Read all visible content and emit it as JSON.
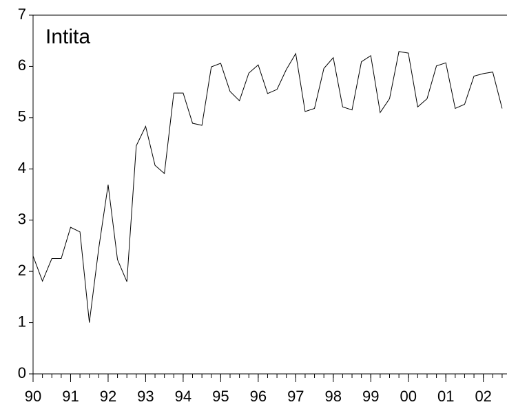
{
  "chart_data": {
    "type": "line",
    "annotation": "Intita",
    "x": [
      1990,
      1990.25,
      1990.5,
      1990.75,
      1991,
      1991.25,
      1991.5,
      1991.75,
      1992,
      1992.25,
      1992.5,
      1992.75,
      1993,
      1993.25,
      1993.5,
      1993.75,
      1994,
      1994.25,
      1994.5,
      1994.75,
      1995,
      1995.25,
      1995.5,
      1995.75,
      1996,
      1996.25,
      1996.5,
      1996.75,
      1997,
      1997.25,
      1997.5,
      1997.75,
      1998,
      1998.25,
      1998.5,
      1998.75,
      1999,
      1999.25,
      1999.5,
      1999.75,
      2000,
      2000.25,
      2000.5,
      2000.75,
      2001,
      2001.25,
      2001.5,
      2001.75,
      2002,
      2002.25,
      2002.5
    ],
    "series": [
      {
        "color": "#000000",
        "values": [
          2.3,
          1.81,
          2.25,
          2.25,
          2.86,
          2.77,
          1.0,
          2.45,
          3.69,
          2.23,
          1.8,
          4.45,
          4.83,
          4.07,
          3.91,
          5.48,
          5.48,
          4.89,
          4.85,
          5.99,
          6.06,
          5.51,
          5.33,
          5.87,
          6.03,
          5.47,
          5.55,
          5.94,
          6.25,
          5.12,
          5.18,
          5.96,
          6.17,
          5.21,
          5.15,
          6.09,
          6.21,
          5.1,
          5.37,
          6.29,
          6.26,
          5.21,
          5.37,
          6.01,
          6.07,
          5.18,
          5.26,
          5.81,
          5.86,
          5.89,
          5.18
        ]
      }
    ],
    "xlim": [
      1990,
      2002.63
    ],
    "xticks": [
      {
        "value": 1990,
        "label": "90"
      },
      {
        "value": 1991,
        "label": "91"
      },
      {
        "value": 1992,
        "label": "92"
      },
      {
        "value": 1993,
        "label": "93"
      },
      {
        "value": 1994,
        "label": "94"
      },
      {
        "value": 1995,
        "label": "95"
      },
      {
        "value": 1996,
        "label": "96"
      },
      {
        "value": 1997,
        "label": "97"
      },
      {
        "value": 1998,
        "label": "98"
      },
      {
        "value": 1999,
        "label": "99"
      },
      {
        "value": 2000,
        "label": "00"
      },
      {
        "value": 2001,
        "label": "01"
      },
      {
        "value": 2002,
        "label": "02"
      }
    ],
    "ylim": [
      0,
      7
    ],
    "yticks": [
      0,
      1,
      2,
      3,
      4,
      5,
      6,
      7
    ]
  }
}
